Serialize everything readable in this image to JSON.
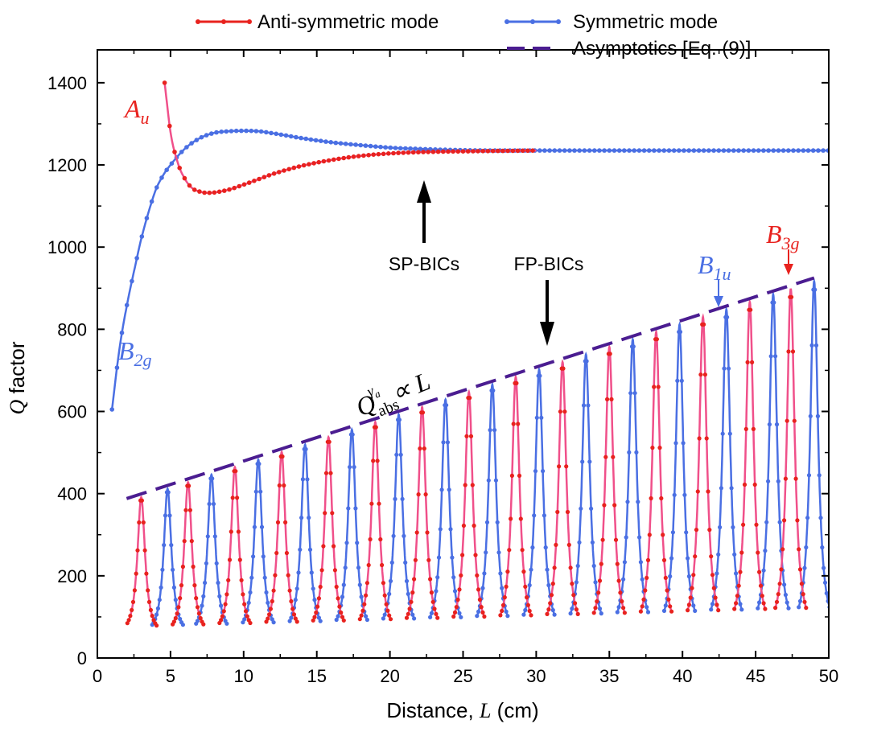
{
  "chart_data": {
    "type": "line",
    "xlabel_prefix": "Distance, ",
    "xlabel_var": "L",
    "xlabel_unit": " (cm)",
    "ylabel_var": "Q",
    "ylabel_rest": " factor",
    "xlim": [
      0,
      50
    ],
    "ylim": [
      0,
      1480
    ],
    "xticks": [
      0,
      5,
      10,
      15,
      20,
      25,
      30,
      35,
      40,
      45,
      50
    ],
    "yticks": [
      0,
      200,
      400,
      600,
      800,
      1000,
      1200,
      1400
    ],
    "legend": [
      {
        "label": "Anti-symmetric mode",
        "color": "#e8221e",
        "style": "line-marker"
      },
      {
        "label": "Symmetric mode",
        "color": "#4a6fe3",
        "style": "line-marker"
      },
      {
        "label": "Asymptotics [Eq. (9)]",
        "color": "#4b1d91",
        "style": "dashed"
      }
    ],
    "colors": {
      "anti": "#e8221e",
      "anti_line": "#f0508a",
      "sym": "#4a6fe3",
      "asym": "#4b1d91",
      "arrow": "#000000"
    },
    "series": [
      {
        "name": "Symmetric mode (SP branch)",
        "x": [
          1.0,
          1.5,
          2.0,
          2.5,
          3.0,
          3.5,
          4.0,
          4.5,
          5.0,
          6.0,
          7.0,
          8.0,
          9.0,
          10.0,
          11.0,
          12.0,
          14.0,
          16.0,
          18.0,
          20.0,
          22.0,
          25.0,
          30.0,
          40.0,
          50.0
        ],
        "y": [
          605,
          750,
          855,
          940,
          1020,
          1085,
          1140,
          1175,
          1200,
          1240,
          1265,
          1278,
          1282,
          1283,
          1282,
          1277,
          1265,
          1255,
          1248,
          1242,
          1239,
          1236,
          1235,
          1235,
          1235
        ]
      },
      {
        "name": "Anti-symmetric mode (SP branch)",
        "x": [
          4.6,
          5.0,
          5.5,
          6.0,
          6.5,
          7.0,
          7.5,
          8.0,
          9.0,
          10.0,
          11.0,
          12.0,
          14.0,
          16.0,
          18.0,
          20.0,
          22.0,
          25.0,
          30.0
        ],
        "y": [
          1400,
          1280,
          1205,
          1165,
          1143,
          1135,
          1132,
          1133,
          1140,
          1152,
          1165,
          1178,
          1198,
          1212,
          1222,
          1228,
          1231,
          1233,
          1235
        ]
      },
      {
        "name": "Asymptotics [Eq. (9)]",
        "x": [
          2.0,
          49.0
        ],
        "y": [
          388,
          925
        ]
      }
    ],
    "fp_peaks": {
      "anti_x": [
        3.0,
        6.2,
        9.4,
        12.6,
        15.8,
        19.0,
        22.2,
        25.4,
        28.6,
        31.8,
        35.0,
        38.2,
        41.4,
        44.6,
        47.4
      ],
      "sym_x": [
        4.8,
        7.8,
        11.0,
        14.2,
        17.4,
        20.6,
        23.8,
        27.0,
        30.2,
        33.4,
        36.6,
        39.8,
        43.0,
        46.2,
        49.0
      ],
      "peak_q": "follows asymptote Q ∝ L (≈ 388 at L = 2 to ≈ 925 at L = 49)",
      "min_q": 50
    },
    "annotations": {
      "a_u": {
        "main": "A",
        "sub": "u"
      },
      "b_2g": {
        "main": "B",
        "sub": "2g"
      },
      "b_1u": {
        "main": "B",
        "sub": "1u"
      },
      "b_3g": {
        "main": "B",
        "sub": "3g"
      },
      "sp_bics": "SP-BICs",
      "fp_bics": "FP-BICs",
      "q_main": "Q",
      "q_sub": "abs",
      "q_sup_main": "γ",
      "q_sup_sub": "a",
      "q_rest": " ∝ L"
    }
  }
}
